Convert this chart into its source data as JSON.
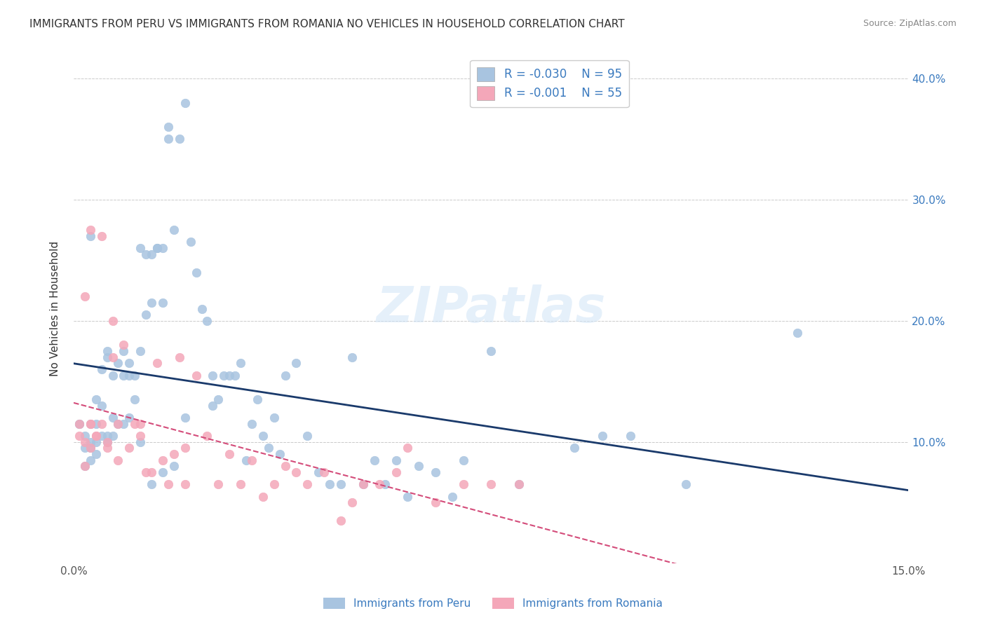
{
  "title": "IMMIGRANTS FROM PERU VS IMMIGRANTS FROM ROMANIA NO VEHICLES IN HOUSEHOLD CORRELATION CHART",
  "source": "Source: ZipAtlas.com",
  "xlabel_bottom": "",
  "ylabel": "No Vehicles in Household",
  "xlim": [
    0.0,
    0.15
  ],
  "ylim": [
    0.0,
    0.42
  ],
  "xticks": [
    0.0,
    0.05,
    0.1,
    0.15
  ],
  "xticklabels": [
    "0.0%",
    "",
    "",
    "15.0%"
  ],
  "yticks_right": [
    0.1,
    0.2,
    0.3,
    0.4
  ],
  "ytick_labels_right": [
    "10.0%",
    "20.0%",
    "30.0%",
    "40.0%"
  ],
  "legend_r_peru": "-0.030",
  "legend_n_peru": "95",
  "legend_r_romania": "-0.001",
  "legend_n_romania": "55",
  "color_peru": "#a8c4e0",
  "color_romania": "#f4a7b9",
  "line_color_peru": "#1a3a6b",
  "line_color_romania": "#d44c7a",
  "watermark": "ZIPatlas",
  "peru_scatter_x": [
    0.003,
    0.001,
    0.002,
    0.004,
    0.003,
    0.005,
    0.002,
    0.003,
    0.004,
    0.005,
    0.006,
    0.007,
    0.004,
    0.003,
    0.006,
    0.005,
    0.008,
    0.007,
    0.006,
    0.009,
    0.01,
    0.011,
    0.009,
    0.012,
    0.01,
    0.013,
    0.011,
    0.014,
    0.012,
    0.015,
    0.013,
    0.016,
    0.014,
    0.017,
    0.015,
    0.018,
    0.016,
    0.019,
    0.017,
    0.02,
    0.022,
    0.021,
    0.023,
    0.024,
    0.025,
    0.026,
    0.027,
    0.028,
    0.029,
    0.03,
    0.031,
    0.032,
    0.033,
    0.034,
    0.035,
    0.036,
    0.037,
    0.038,
    0.04,
    0.042,
    0.044,
    0.046,
    0.048,
    0.05,
    0.052,
    0.054,
    0.056,
    0.058,
    0.06,
    0.062,
    0.065,
    0.068,
    0.07,
    0.075,
    0.08,
    0.09,
    0.095,
    0.1,
    0.11,
    0.13,
    0.001,
    0.002,
    0.003,
    0.004,
    0.006,
    0.007,
    0.008,
    0.009,
    0.01,
    0.012,
    0.014,
    0.016,
    0.018,
    0.02,
    0.025
  ],
  "peru_scatter_y": [
    0.27,
    0.115,
    0.105,
    0.1,
    0.095,
    0.105,
    0.08,
    0.085,
    0.09,
    0.13,
    0.17,
    0.105,
    0.135,
    0.115,
    0.175,
    0.16,
    0.165,
    0.155,
    0.1,
    0.155,
    0.165,
    0.135,
    0.175,
    0.26,
    0.155,
    0.205,
    0.155,
    0.255,
    0.175,
    0.26,
    0.255,
    0.26,
    0.215,
    0.36,
    0.26,
    0.275,
    0.215,
    0.35,
    0.35,
    0.38,
    0.24,
    0.265,
    0.21,
    0.2,
    0.155,
    0.135,
    0.155,
    0.155,
    0.155,
    0.165,
    0.085,
    0.115,
    0.135,
    0.105,
    0.095,
    0.12,
    0.09,
    0.155,
    0.165,
    0.105,
    0.075,
    0.065,
    0.065,
    0.17,
    0.065,
    0.085,
    0.065,
    0.085,
    0.055,
    0.08,
    0.075,
    0.055,
    0.085,
    0.175,
    0.065,
    0.095,
    0.105,
    0.105,
    0.065,
    0.19,
    0.115,
    0.095,
    0.1,
    0.115,
    0.105,
    0.12,
    0.115,
    0.115,
    0.12,
    0.1,
    0.065,
    0.075,
    0.08,
    0.12,
    0.13
  ],
  "romania_scatter_x": [
    0.001,
    0.002,
    0.003,
    0.001,
    0.002,
    0.003,
    0.004,
    0.002,
    0.003,
    0.004,
    0.005,
    0.006,
    0.007,
    0.006,
    0.007,
    0.008,
    0.009,
    0.01,
    0.011,
    0.012,
    0.013,
    0.014,
    0.015,
    0.016,
    0.017,
    0.018,
    0.019,
    0.02,
    0.022,
    0.024,
    0.026,
    0.028,
    0.03,
    0.032,
    0.034,
    0.036,
    0.038,
    0.04,
    0.042,
    0.045,
    0.048,
    0.05,
    0.052,
    0.055,
    0.058,
    0.06,
    0.065,
    0.07,
    0.075,
    0.08,
    0.003,
    0.005,
    0.008,
    0.012,
    0.02
  ],
  "romania_scatter_y": [
    0.115,
    0.1,
    0.095,
    0.105,
    0.22,
    0.115,
    0.105,
    0.08,
    0.115,
    0.105,
    0.115,
    0.095,
    0.2,
    0.1,
    0.17,
    0.085,
    0.18,
    0.095,
    0.115,
    0.105,
    0.075,
    0.075,
    0.165,
    0.085,
    0.065,
    0.09,
    0.17,
    0.065,
    0.155,
    0.105,
    0.065,
    0.09,
    0.065,
    0.085,
    0.055,
    0.065,
    0.08,
    0.075,
    0.065,
    0.075,
    0.035,
    0.05,
    0.065,
    0.065,
    0.075,
    0.095,
    0.05,
    0.065,
    0.065,
    0.065,
    0.275,
    0.27,
    0.115,
    0.115,
    0.095
  ]
}
